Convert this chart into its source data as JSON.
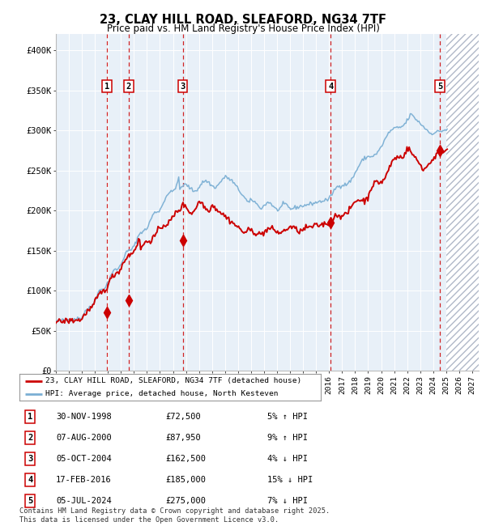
{
  "title": "23, CLAY HILL ROAD, SLEAFORD, NG34 7TF",
  "subtitle": "Price paid vs. HM Land Registry's House Price Index (HPI)",
  "ylim": [
    0,
    420000
  ],
  "xlim_start": 1995.0,
  "xlim_end": 2027.5,
  "future_start": 2025.0,
  "yticks": [
    0,
    50000,
    100000,
    150000,
    200000,
    250000,
    300000,
    350000,
    400000
  ],
  "ytick_labels": [
    "£0",
    "£50K",
    "£100K",
    "£150K",
    "£200K",
    "£250K",
    "£300K",
    "£350K",
    "£400K"
  ],
  "xticks": [
    1995,
    1996,
    1997,
    1998,
    1999,
    2000,
    2001,
    2002,
    2003,
    2004,
    2005,
    2006,
    2007,
    2008,
    2009,
    2010,
    2011,
    2012,
    2013,
    2014,
    2015,
    2016,
    2017,
    2018,
    2019,
    2020,
    2021,
    2022,
    2023,
    2024,
    2025,
    2026,
    2027
  ],
  "transactions": [
    {
      "num": 1,
      "date": "30-NOV-1998",
      "year": 1998.92,
      "price": 72500,
      "hpi_rel": "5% ↑ HPI"
    },
    {
      "num": 2,
      "date": "07-AUG-2000",
      "year": 2000.6,
      "price": 87950,
      "hpi_rel": "9% ↑ HPI"
    },
    {
      "num": 3,
      "date": "05-OCT-2004",
      "year": 2004.76,
      "price": 162500,
      "hpi_rel": "4% ↓ HPI"
    },
    {
      "num": 4,
      "date": "17-FEB-2016",
      "year": 2016.12,
      "price": 185000,
      "hpi_rel": "15% ↓ HPI"
    },
    {
      "num": 5,
      "date": "05-JUL-2024",
      "year": 2024.51,
      "price": 275000,
      "hpi_rel": "7% ↓ HPI"
    }
  ],
  "red_line_color": "#cc0000",
  "blue_line_color": "#7bafd4",
  "hpi_bg_color": "#ddeeff",
  "vline_color": "#cc0000",
  "label_red": "23, CLAY HILL ROAD, SLEAFORD, NG34 7TF (detached house)",
  "label_blue": "HPI: Average price, detached house, North Kesteven",
  "footer": "Contains HM Land Registry data © Crown copyright and database right 2025.\nThis data is licensed under the Open Government Licence v3.0.",
  "background_color": "#ffffff",
  "plot_bg_color": "#e8f0f8"
}
